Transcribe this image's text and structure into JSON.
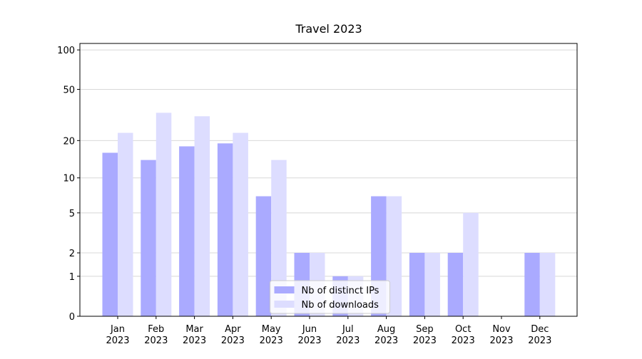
{
  "chart_data": {
    "type": "bar",
    "title": "Travel 2023",
    "categories": [
      "Jan 2023",
      "Feb 2023",
      "Mar 2023",
      "Apr 2023",
      "May 2023",
      "Jun 2023",
      "Jul 2023",
      "Aug 2023",
      "Sep 2023",
      "Oct 2023",
      "Nov 2023",
      "Dec 2023"
    ],
    "series": [
      {
        "name": "Nb of distinct IPs",
        "color": "#aaaaff",
        "values": [
          16,
          14,
          18,
          19,
          7,
          2,
          1,
          7,
          2,
          2,
          0,
          2
        ]
      },
      {
        "name": "Nb of downloads",
        "color": "#ddddff",
        "values": [
          23,
          33,
          31,
          23,
          14,
          2,
          1,
          7,
          2,
          5,
          0,
          2
        ]
      }
    ],
    "yscale": "log1p",
    "ylim": [
      0,
      112
    ],
    "yticks": [
      0,
      1,
      2,
      5,
      10,
      20,
      50,
      100
    ],
    "grid": true,
    "legend": "lower center"
  }
}
